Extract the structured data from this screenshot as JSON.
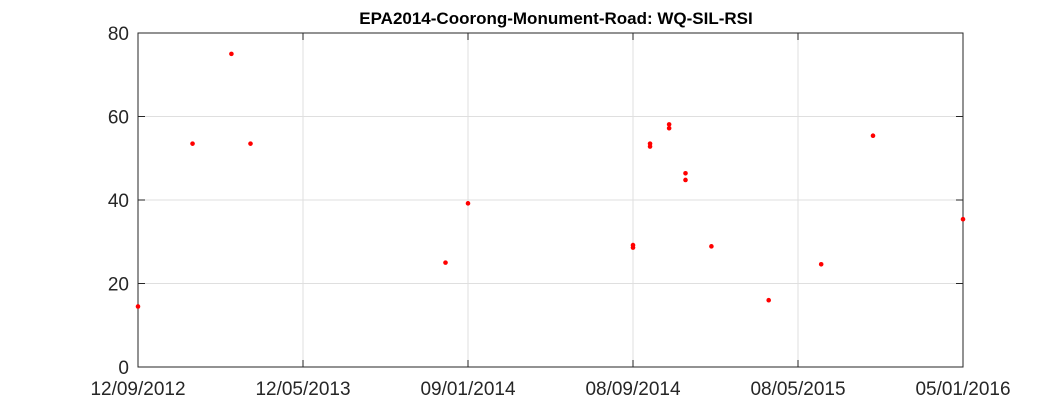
{
  "chart_data": {
    "type": "scatter",
    "title": "EPA2014-Coorong-Monument-Road: WQ-SIL-RSI",
    "xlabel": "",
    "ylabel": "",
    "x_axis": {
      "type": "date",
      "range": [
        "2012-09-12",
        "2016-01-05"
      ],
      "ticks": [
        {
          "value": "2012-09-12",
          "label": "12/09/2012"
        },
        {
          "value": "2013-05-12",
          "label": "12/05/2013"
        },
        {
          "value": "2014-01-09",
          "label": "09/01/2014"
        },
        {
          "value": "2014-09-08",
          "label": "08/09/2014"
        },
        {
          "value": "2015-05-08",
          "label": "08/05/2015"
        },
        {
          "value": "2016-01-05",
          "label": "05/01/2016"
        }
      ]
    },
    "y_axis": {
      "range": [
        0,
        80
      ],
      "ticks": [
        0,
        20,
        40,
        60,
        80
      ]
    },
    "grid": true,
    "marker_color": "#ff0000",
    "points": [
      {
        "x": "2012-09-12",
        "y": 14.5
      },
      {
        "x": "2012-12-01",
        "y": 53.5
      },
      {
        "x": "2013-01-27",
        "y": 75.0
      },
      {
        "x": "2013-02-24",
        "y": 53.5
      },
      {
        "x": "2013-12-07",
        "y": 25.0
      },
      {
        "x": "2014-01-09",
        "y": 39.2
      },
      {
        "x": "2014-09-08",
        "y": 29.2
      },
      {
        "x": "2014-09-08",
        "y": 28.6
      },
      {
        "x": "2014-10-03",
        "y": 53.5
      },
      {
        "x": "2014-10-03",
        "y": 52.8
      },
      {
        "x": "2014-10-31",
        "y": 58.1
      },
      {
        "x": "2014-10-31",
        "y": 57.2
      },
      {
        "x": "2014-11-24",
        "y": 46.4
      },
      {
        "x": "2014-11-24",
        "y": 44.8
      },
      {
        "x": "2015-01-01",
        "y": 28.9
      },
      {
        "x": "2015-03-26",
        "y": 16.0
      },
      {
        "x": "2015-06-11",
        "y": 24.6
      },
      {
        "x": "2015-08-26",
        "y": 55.4
      },
      {
        "x": "2016-01-05",
        "y": 35.4
      }
    ]
  }
}
